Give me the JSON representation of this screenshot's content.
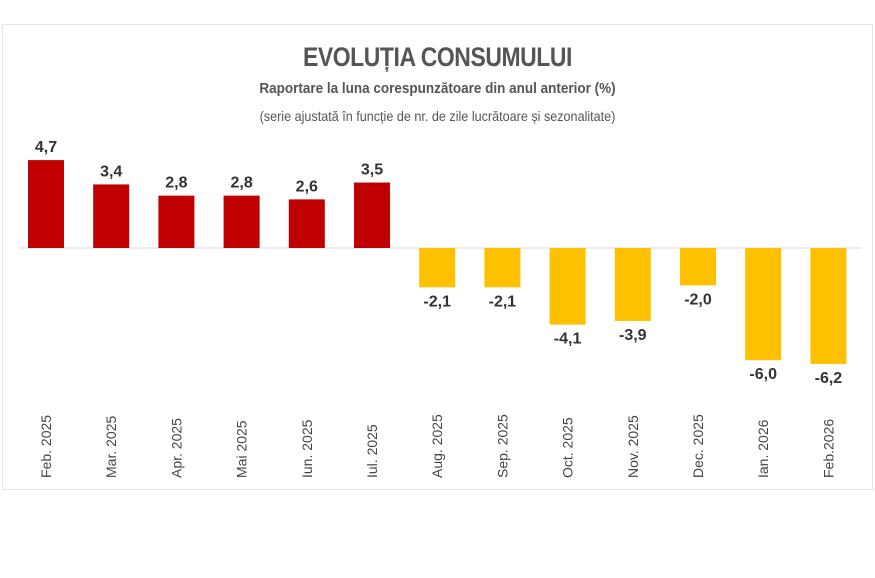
{
  "chart_data": {
    "type": "bar",
    "title": "EVOLUȚIA CONSUMULUI",
    "subtitle": "Raportare la luna corespunzătoare din anul anterior (%)",
    "note": "(serie ajustată în funcție de nr. de zile lucrătoare și sezonalitate)",
    "categories": [
      "Feb. 2025",
      "Mar. 2025",
      "Apr. 2025",
      "Mai 2025",
      "Iun. 2025",
      "Iul. 2025",
      "Aug. 2025",
      "Sep. 2025",
      "Oct. 2025",
      "Nov. 2025",
      "Dec. 2025",
      "Ian. 2026",
      "Feb.2026"
    ],
    "values": [
      4.7,
      3.4,
      2.8,
      2.8,
      2.6,
      3.5,
      -2.1,
      -2.1,
      -4.1,
      -3.9,
      -2.0,
      -6.0,
      -6.2
    ],
    "value_labels": [
      "4,7",
      "3,4",
      "2,8",
      "2,8",
      "2,6",
      "3,5",
      "-2,1",
      "-2,1",
      "-4,1",
      "-3,9",
      "-2,0",
      "-6,0",
      "-6,2"
    ],
    "xlabel": "",
    "ylabel": "",
    "ylim": [
      -6.2,
      4.7
    ],
    "grid": false,
    "colors": {
      "positive": "#c00000",
      "negative": "#ffc000"
    }
  }
}
